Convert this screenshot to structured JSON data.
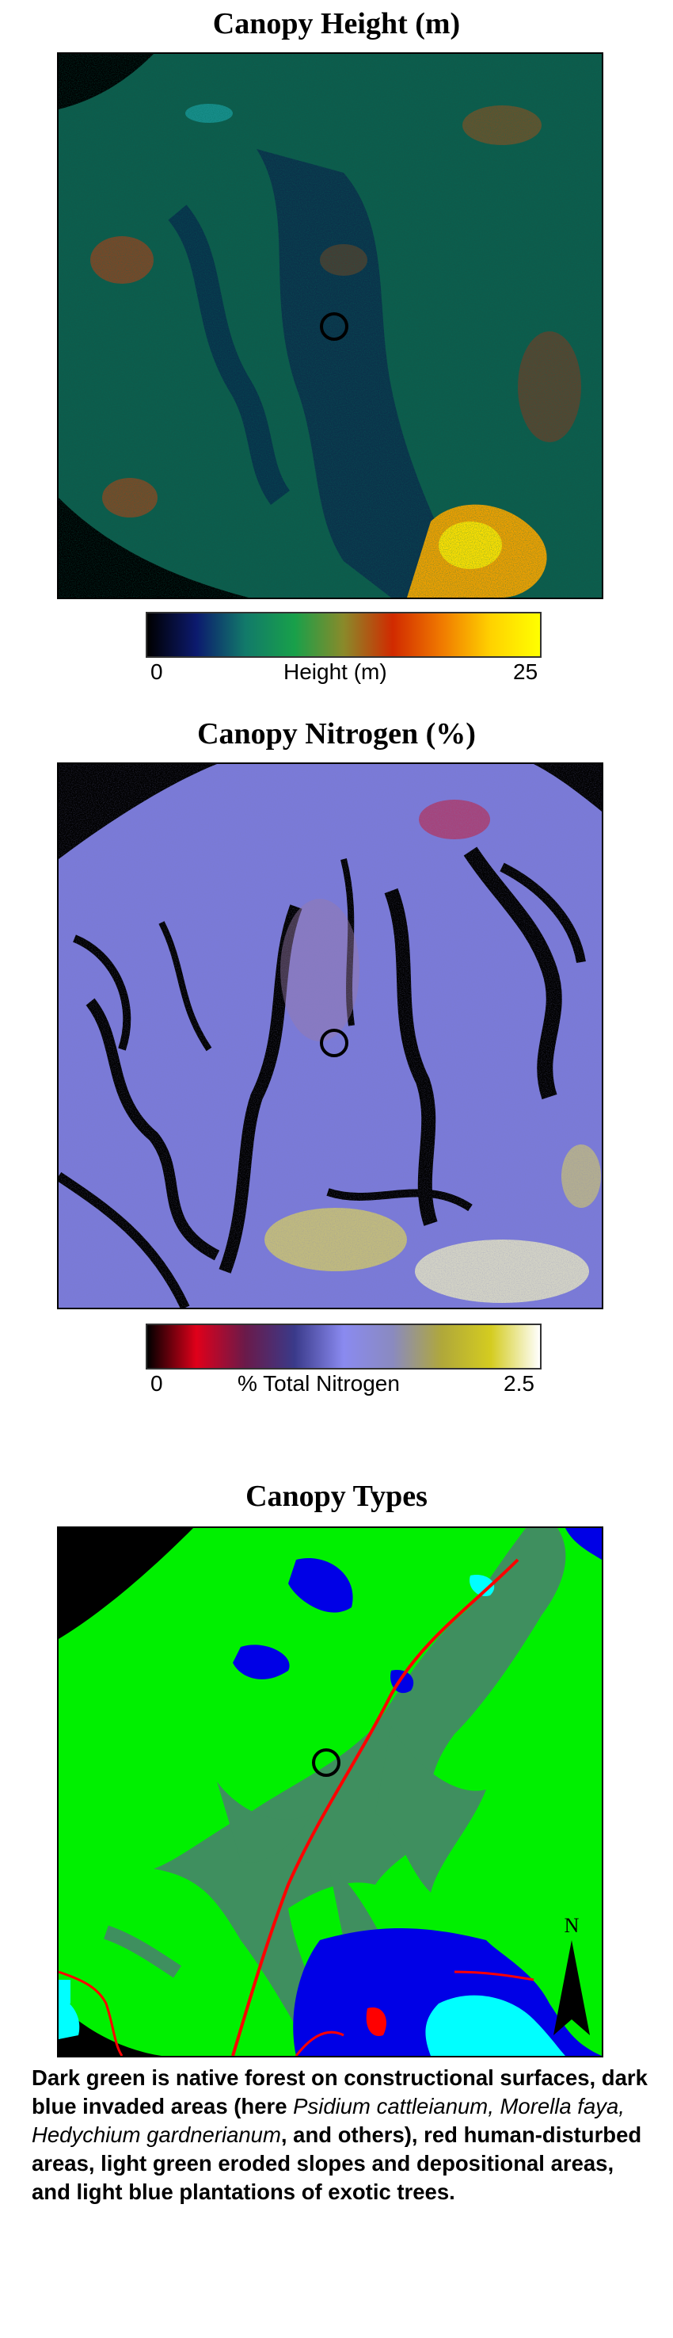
{
  "panels": {
    "height": {
      "title": "Canopy Height (m)",
      "colorbar": {
        "min": "0",
        "label": "Height (m)",
        "max": "25",
        "colors": [
          "#000000",
          "#0c1a6e",
          "#127a6a",
          "#18a04a",
          "#8a8a2a",
          "#d12a00",
          "#f07a00",
          "#ffd200",
          "#ffff00"
        ]
      }
    },
    "nitrogen": {
      "title": "Canopy Nitrogen (%)",
      "colorbar": {
        "min": "0",
        "label": "% Total Nitrogen",
        "max": "2.5",
        "colors": [
          "#000000",
          "#e0001a",
          "#6a1a4a",
          "#3a3a8a",
          "#8a8af0",
          "#8a8ac0",
          "#b0a83a",
          "#d4cc20",
          "#ffffff"
        ]
      }
    },
    "types": {
      "title": "Canopy Types",
      "north_label": "N",
      "colors": {
        "native": "#3f8f5f",
        "invaded": "#0000e6",
        "disturbed": "#ff0000",
        "eroded": "#00f000",
        "plantation": "#00ffff"
      }
    }
  },
  "caption": {
    "part1": "Dark green is native forest on constructional surfaces, dark blue invaded areas (here ",
    "species": "Psidium cattleianum, Morella faya, Hedychium gardnerianum",
    "part2": ", and others), red human-disturbed areas, light green eroded slopes and depositional areas, and light blue plantations of exotic trees."
  }
}
